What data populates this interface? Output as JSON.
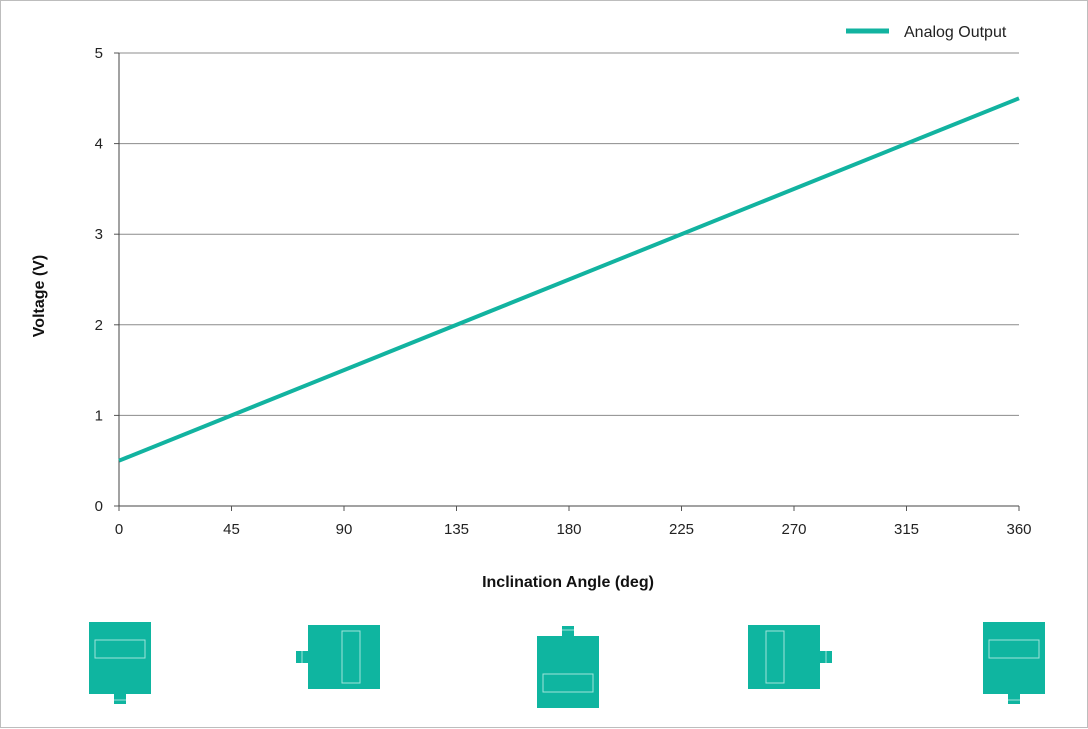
{
  "chart_data": {
    "type": "line",
    "xlabel": "Inclination Angle (deg)",
    "ylabel": "Voltage (V)",
    "xlim": [
      0,
      360
    ],
    "ylim": [
      0,
      5
    ],
    "x_ticks": [
      "0",
      "45",
      "90",
      "135",
      "180",
      "225",
      "270",
      "315",
      "360"
    ],
    "y_ticks": [
      "0",
      "1",
      "2",
      "3",
      "4",
      "5"
    ],
    "grid": "horizontal",
    "legend": "top-right",
    "series": [
      {
        "name": "Analog Output",
        "x": [
          0,
          360
        ],
        "y": [
          0.5,
          4.5
        ],
        "color": "#12b3a0"
      }
    ]
  },
  "orientation_icons": [
    {
      "icon": "sensor-pin-bottom-icon",
      "angle": 0
    },
    {
      "icon": "sensor-pin-left-icon",
      "angle": 90
    },
    {
      "icon": "sensor-pin-top-icon",
      "angle": 180
    },
    {
      "icon": "sensor-pin-right-icon",
      "angle": 270
    },
    {
      "icon": "sensor-pin-bottom-icon",
      "angle": 360
    }
  ],
  "colors": {
    "accent": "#12b3a0",
    "icon_fill": "#0fb5a0",
    "grid": "#8c8c8c"
  }
}
